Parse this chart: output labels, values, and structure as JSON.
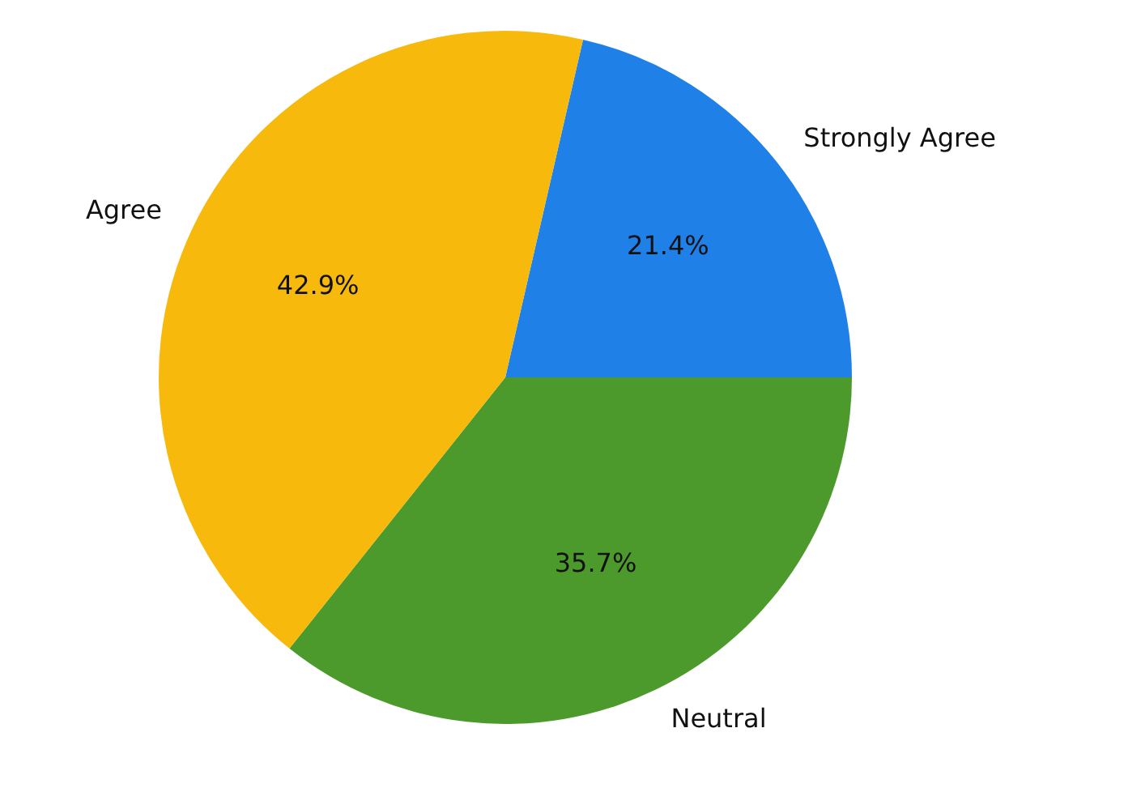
{
  "chart_data": {
    "type": "pie",
    "categories": [
      "Strongly Agree",
      "Neutral",
      "Agree"
    ],
    "values": [
      21.4,
      35.7,
      42.9
    ],
    "colors": [
      "#1f80e8",
      "#4c9a2c",
      "#f6b90c"
    ],
    "value_labels": [
      "21.4%",
      "35.7%",
      "42.9%"
    ],
    "legend": false
  }
}
